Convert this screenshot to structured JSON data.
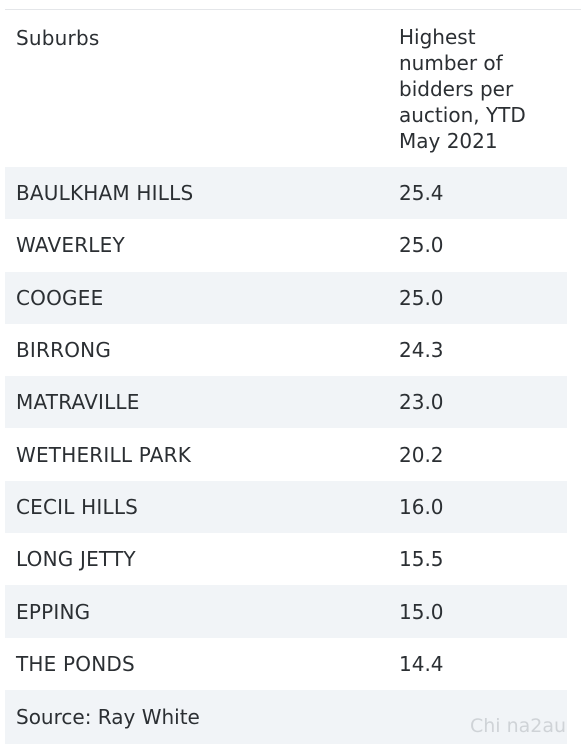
{
  "table": {
    "header": {
      "suburb": "Suburbs",
      "value": "Highest number of bidders per auction, YTD May 2021"
    },
    "rows": [
      {
        "suburb": "BAULKHAM HILLS",
        "value": "25.4"
      },
      {
        "suburb": "WAVERLEY",
        "value": "25.0"
      },
      {
        "suburb": "COOGEE",
        "value": "25.0"
      },
      {
        "suburb": "BIRRONG",
        "value": "24.3"
      },
      {
        "suburb": "MATRAVILLE",
        "value": "23.0"
      },
      {
        "suburb": "WETHERILL PARK",
        "value": "20.2"
      },
      {
        "suburb": "CECIL HILLS",
        "value": "16.0"
      },
      {
        "suburb": "LONG JETTY",
        "value": "15.5"
      },
      {
        "suburb": "EPPING",
        "value": "15.0"
      },
      {
        "suburb": "THE PONDS",
        "value": "14.4"
      }
    ],
    "source": "Source: Ray White"
  },
  "watermark": "Chi na2au",
  "colors": {
    "shaded_row": "#f1f4f7",
    "text": "#2b2f33",
    "watermark": "#cfd3d7"
  }
}
